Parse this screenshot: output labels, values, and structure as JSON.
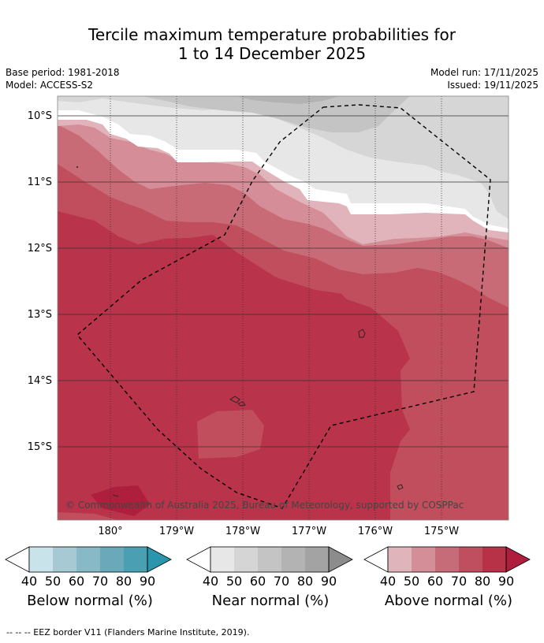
{
  "title": {
    "line1": "Tercile maximum temperature probabilities for",
    "line2": "1 to 14 December 2025"
  },
  "meta": {
    "base_period": "Base period: 1981-2018",
    "model": "Model: ACCESS-S2",
    "model_run": "Model run: 17/11/2025",
    "issued": "Issued: 19/11/2025"
  },
  "map": {
    "lat_labels": [
      "10°S",
      "11°S",
      "12°S",
      "13°S",
      "14°S",
      "15°S"
    ],
    "lon_labels": [
      "180°",
      "179°W",
      "178°W",
      "177°W",
      "176°W",
      "175°W"
    ],
    "copyright": "© Commonwealth of Australia 2025, Bureau of Meteorology, supported by COSPPac"
  },
  "colorbars": [
    {
      "name": "Below normal (%)",
      "ticks": [
        "40",
        "50",
        "60",
        "70",
        "80",
        "90"
      ],
      "colors": [
        "#ffffff",
        "#c8e3ea",
        "#a6c9d3",
        "#88b9c6",
        "#6aa9b9",
        "#4aa0b2",
        "#2a95ad"
      ]
    },
    {
      "name": "Near normal (%)",
      "ticks": [
        "40",
        "50",
        "60",
        "70",
        "80",
        "90"
      ],
      "colors": [
        "#ffffff",
        "#e7e7e7",
        "#d5d5d5",
        "#c4c4c4",
        "#b3b3b3",
        "#a3a3a3",
        "#8c8c8c"
      ]
    },
    {
      "name": "Above normal (%)",
      "ticks": [
        "40",
        "50",
        "60",
        "70",
        "80",
        "90"
      ],
      "colors": [
        "#ffffff",
        "#e0b4bb",
        "#d38e98",
        "#c66c78",
        "#bf4f5e",
        "#b73147",
        "#ad1f3c"
      ]
    }
  ],
  "footer": "--  --  -- EEZ border V11 (Flanders Marine Institute, 2019)."
}
